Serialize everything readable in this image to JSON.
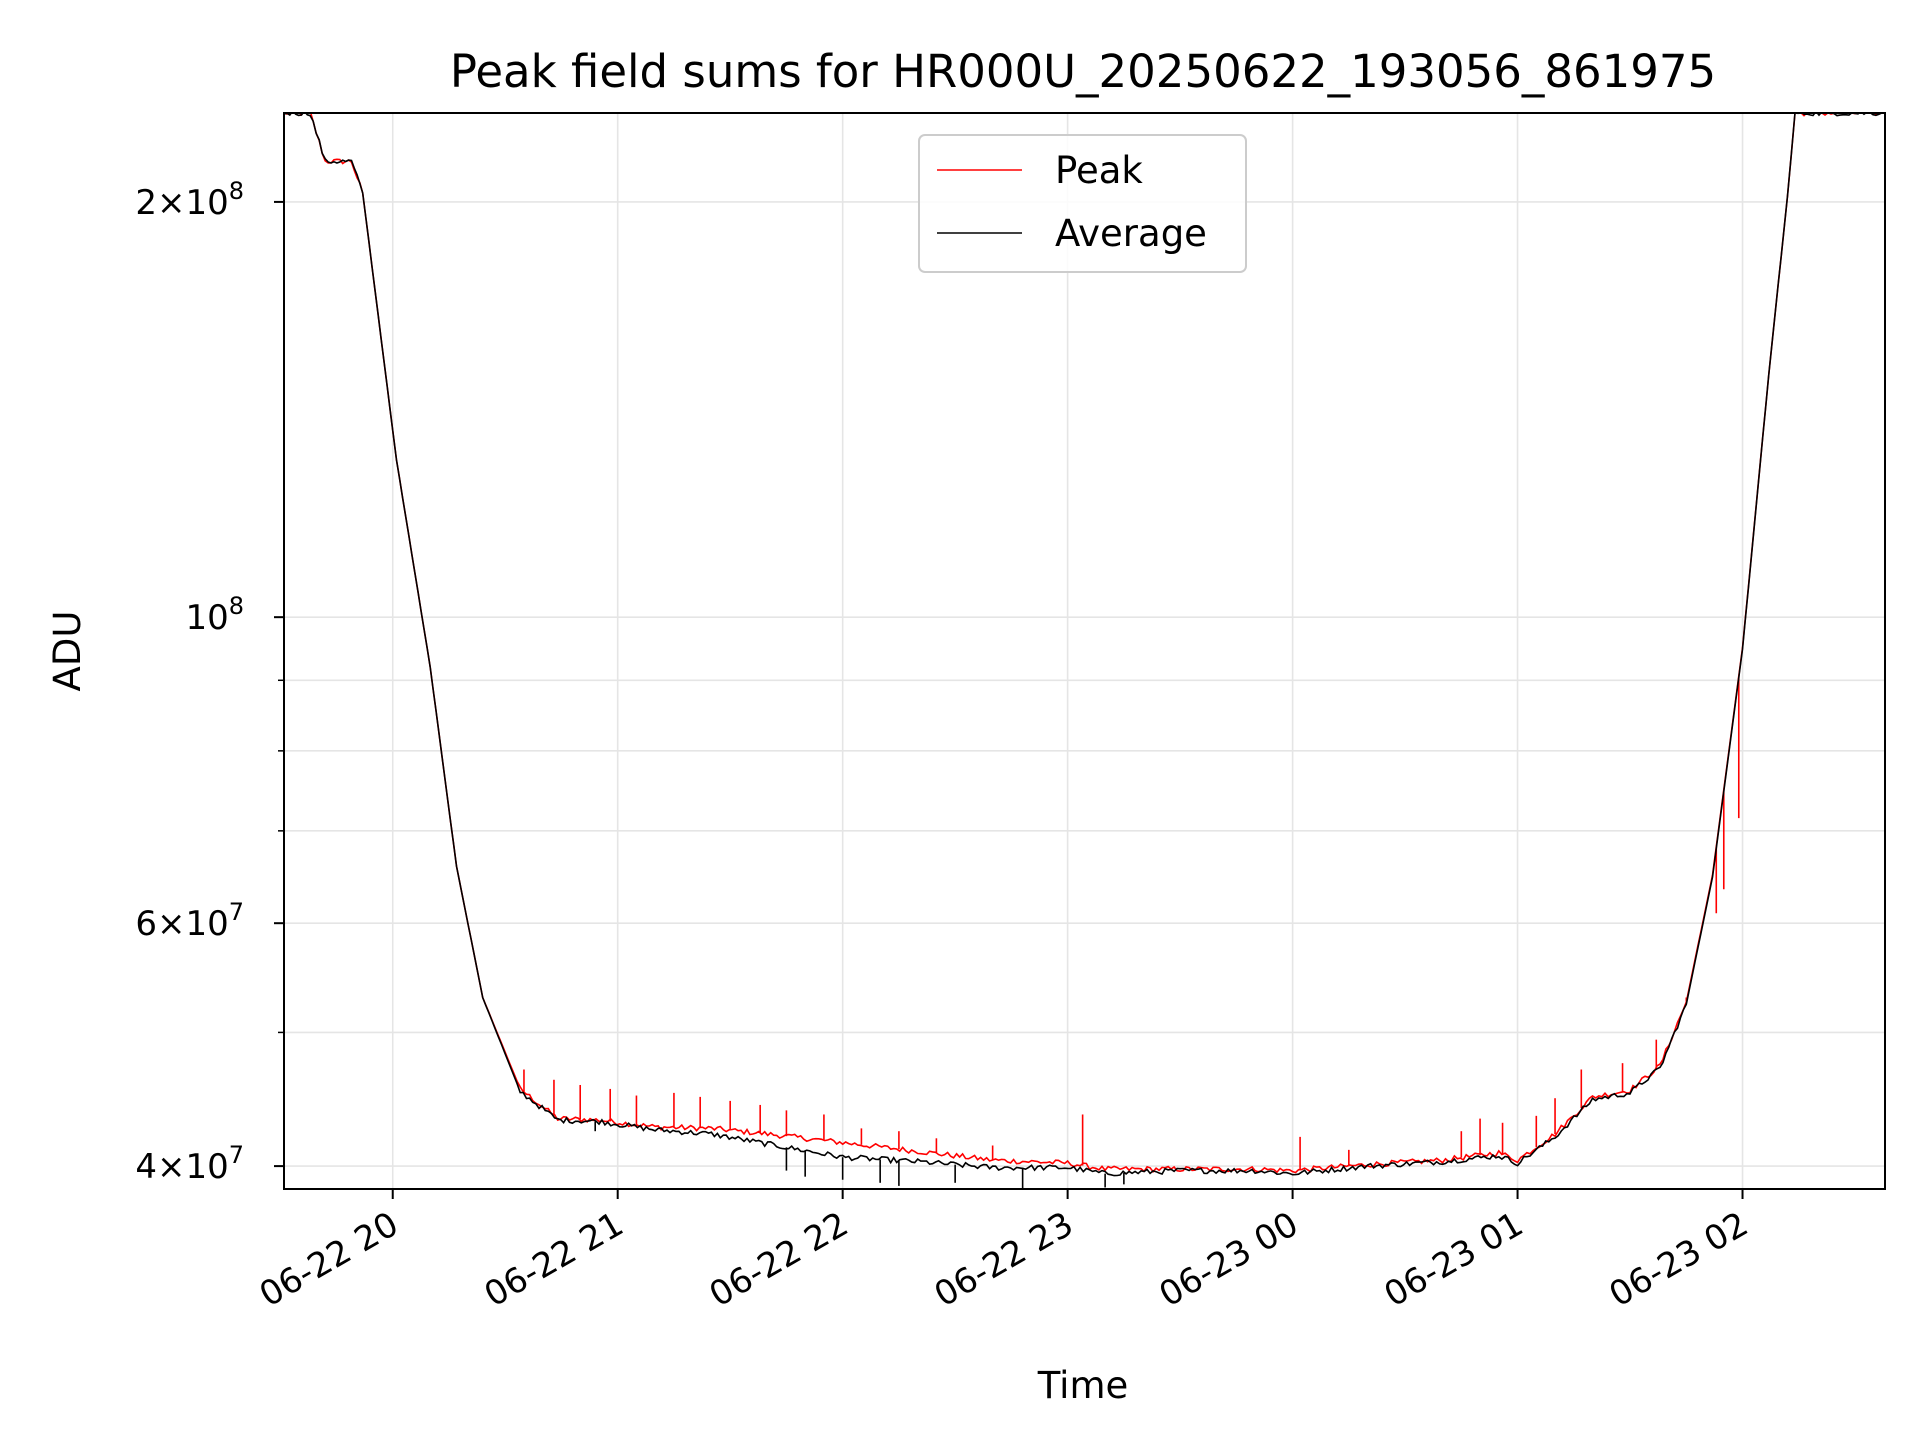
{
  "chart_data": {
    "type": "line",
    "title": "Peak field sums for HR000U_20250622_193056_861975",
    "xlabel": "Time",
    "ylabel": "ADU",
    "xscale": "time",
    "yscale": "log",
    "xlim": [
      "2025-06-22 19:31",
      "2025-06-23 02:38"
    ],
    "ylim": [
      38500000,
      232000000
    ],
    "x_tick_labels": [
      "06-22 20",
      "06-22 21",
      "06-22 22",
      "06-22 23",
      "06-23 00",
      "06-23 01",
      "06-23 02"
    ],
    "x_ticks": [
      "2025-06-22 20:00",
      "2025-06-22 21:00",
      "2025-06-22 22:00",
      "2025-06-22 23:00",
      "2025-06-23 00:00",
      "2025-06-23 01:00",
      "2025-06-23 02:00"
    ],
    "y_ticks": [
      {
        "value": 40000000,
        "mantissa": "4",
        "exponent": "7"
      },
      {
        "value": 60000000,
        "mantissa": "6",
        "exponent": "7"
      },
      {
        "value": 100000000,
        "mantissa": "",
        "exponent": "8"
      },
      {
        "value": 200000000,
        "mantissa": "2",
        "exponent": "8"
      }
    ],
    "y_minor_ticks": [
      50000000,
      70000000,
      80000000,
      90000000
    ],
    "grid": true,
    "legend_position": "upper center",
    "series": [
      {
        "name": "Peak",
        "color": "#ff0000",
        "x": [
          "2025-06-22 19:31",
          "2025-06-22 19:38",
          "2025-06-22 19:42",
          "2025-06-22 19:49",
          "2025-06-22 19:52",
          "2025-06-22 20:01",
          "2025-06-22 20:10",
          "2025-06-22 20:17",
          "2025-06-22 20:24",
          "2025-06-22 20:34",
          "2025-06-22 20:44",
          "2025-06-22 20:55",
          "2025-06-22 21:10",
          "2025-06-22 21:25",
          "2025-06-22 21:40",
          "2025-06-22 22:00",
          "2025-06-22 22:20",
          "2025-06-22 22:40",
          "2025-06-22 23:00",
          "2025-06-22 23:10",
          "2025-06-22 23:30",
          "2025-06-22 23:50",
          "2025-06-23 00:00",
          "2025-06-23 00:20",
          "2025-06-23 00:40",
          "2025-06-23 00:55",
          "2025-06-23 01:00",
          "2025-06-23 01:10",
          "2025-06-23 01:20",
          "2025-06-23 01:30",
          "2025-06-23 01:38",
          "2025-06-23 01:45",
          "2025-06-23 01:52",
          "2025-06-23 02:00",
          "2025-06-23 02:07",
          "2025-06-23 02:12",
          "2025-06-23 02:14",
          "2025-06-23 02:38"
        ],
        "y": [
          232000000,
          232000000,
          214000000,
          214000000,
          203000000,
          130000000,
          92000000,
          66000000,
          53000000,
          45500000,
          43300000,
          43200000,
          42700000,
          42600000,
          42200000,
          41600000,
          41000000,
          40400000,
          40200000,
          39800000,
          39800000,
          39800000,
          39700000,
          40100000,
          40400000,
          40900000,
          40400000,
          42200000,
          44900000,
          45400000,
          47300000,
          52600000,
          65000000,
          95000000,
          150000000,
          202000000,
          232000000,
          232000000
        ],
        "spikes": [
          {
            "x": "2025-06-22 20:35",
            "y": 47000000
          },
          {
            "x": "2025-06-22 20:43",
            "y": 46200000
          },
          {
            "x": "2025-06-22 20:50",
            "y": 45800000
          },
          {
            "x": "2025-06-22 20:58",
            "y": 45500000
          },
          {
            "x": "2025-06-22 21:05",
            "y": 45000000
          },
          {
            "x": "2025-06-22 21:15",
            "y": 45200000
          },
          {
            "x": "2025-06-22 21:22",
            "y": 44900000
          },
          {
            "x": "2025-06-22 21:30",
            "y": 44600000
          },
          {
            "x": "2025-06-22 21:38",
            "y": 44300000
          },
          {
            "x": "2025-06-22 21:45",
            "y": 43900000
          },
          {
            "x": "2025-06-22 21:55",
            "y": 43600000
          },
          {
            "x": "2025-06-22 22:05",
            "y": 42600000
          },
          {
            "x": "2025-06-22 22:15",
            "y": 42400000
          },
          {
            "x": "2025-06-22 22:25",
            "y": 41900000
          },
          {
            "x": "2025-06-22 22:40",
            "y": 41400000
          },
          {
            "x": "2025-06-22 23:04",
            "y": 43600000
          },
          {
            "x": "2025-06-23 00:02",
            "y": 42000000
          },
          {
            "x": "2025-06-23 00:15",
            "y": 41100000
          },
          {
            "x": "2025-06-23 00:45",
            "y": 42400000
          },
          {
            "x": "2025-06-23 00:50",
            "y": 43300000
          },
          {
            "x": "2025-06-23 00:56",
            "y": 43000000
          },
          {
            "x": "2025-06-23 01:05",
            "y": 43500000
          },
          {
            "x": "2025-06-23 01:10",
            "y": 44800000
          },
          {
            "x": "2025-06-23 01:17",
            "y": 47000000
          },
          {
            "x": "2025-06-23 01:28",
            "y": 47500000
          },
          {
            "x": "2025-06-23 01:37",
            "y": 49400000
          },
          {
            "x": "2025-06-23 01:45",
            "y": 53000000
          },
          {
            "x": "2025-06-23 01:53",
            "y": 61000000
          },
          {
            "x": "2025-06-23 01:55",
            "y": 63500000
          },
          {
            "x": "2025-06-23 01:59",
            "y": 71500000
          }
        ]
      },
      {
        "name": "Average",
        "color": "#000000",
        "x": [
          "2025-06-22 19:31",
          "2025-06-22 19:38",
          "2025-06-22 19:42",
          "2025-06-22 19:49",
          "2025-06-22 19:52",
          "2025-06-22 20:01",
          "2025-06-22 20:10",
          "2025-06-22 20:17",
          "2025-06-22 20:24",
          "2025-06-22 20:34",
          "2025-06-22 20:44",
          "2025-06-22 20:55",
          "2025-06-22 21:10",
          "2025-06-22 21:25",
          "2025-06-22 21:40",
          "2025-06-22 22:00",
          "2025-06-22 22:20",
          "2025-06-22 22:40",
          "2025-06-22 23:00",
          "2025-06-22 23:10",
          "2025-06-22 23:30",
          "2025-06-22 23:50",
          "2025-06-23 00:00",
          "2025-06-23 00:20",
          "2025-06-23 00:40",
          "2025-06-23 00:55",
          "2025-06-23 01:00",
          "2025-06-23 01:10",
          "2025-06-23 01:20",
          "2025-06-23 01:30",
          "2025-06-23 01:38",
          "2025-06-23 01:45",
          "2025-06-23 01:52",
          "2025-06-23 02:00",
          "2025-06-23 02:07",
          "2025-06-23 02:12",
          "2025-06-23 02:14",
          "2025-06-23 02:38"
        ],
        "y": [
          232000000,
          232000000,
          214000000,
          214000000,
          203000000,
          130000000,
          92000000,
          66000000,
          53000000,
          45300000,
          43200000,
          43100000,
          42500000,
          42200000,
          41500000,
          40600000,
          40300000,
          39900000,
          39900000,
          39500000,
          39700000,
          39700000,
          39500000,
          40000000,
          40300000,
          40700000,
          40200000,
          42000000,
          44700000,
          45200000,
          47100000,
          52400000,
          64800000,
          94800000,
          150000000,
          202000000,
          232000000,
          232000000
        ],
        "dips": [
          {
            "x": "2025-06-22 20:54",
            "y": 42400000
          },
          {
            "x": "2025-06-22 21:45",
            "y": 39700000
          },
          {
            "x": "2025-06-22 21:50",
            "y": 39300000
          },
          {
            "x": "2025-06-22 22:00",
            "y": 39100000
          },
          {
            "x": "2025-06-22 22:10",
            "y": 38900000
          },
          {
            "x": "2025-06-22 22:15",
            "y": 38700000
          },
          {
            "x": "2025-06-22 22:30",
            "y": 38900000
          },
          {
            "x": "2025-06-22 22:48",
            "y": 38500000
          },
          {
            "x": "2025-06-22 23:10",
            "y": 38600000
          },
          {
            "x": "2025-06-22 23:15",
            "y": 38800000
          }
        ]
      }
    ]
  }
}
